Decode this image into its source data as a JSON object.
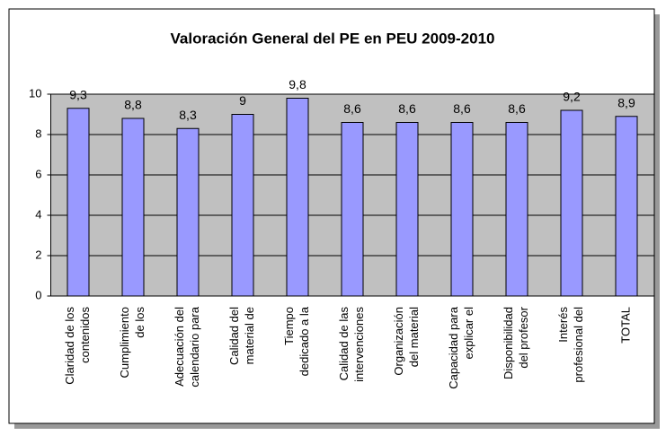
{
  "chart_data": {
    "type": "bar",
    "title": "Valoración General del PE en PEU 2009-2010",
    "categories": [
      [
        "Claridad de los",
        "contenidos"
      ],
      [
        "Cumplimiento",
        "de los"
      ],
      [
        "Adecuación del",
        "calendario para"
      ],
      [
        "Calidad del",
        "material de"
      ],
      [
        "Tiempo",
        "dedicado a la"
      ],
      [
        "Calidad de las",
        "intervenciones"
      ],
      [
        "Organización",
        "del material"
      ],
      [
        "Capacidad para",
        "explicar el"
      ],
      [
        "Disponibilidad",
        "del profesor"
      ],
      [
        "Interés",
        "profesional del"
      ],
      [
        "TOTAL"
      ]
    ],
    "values": [
      9.3,
      8.8,
      8.3,
      9,
      9.8,
      8.6,
      8.6,
      8.6,
      8.6,
      9.2,
      8.9
    ],
    "value_labels": [
      "9,3",
      "8,8",
      "8,3",
      "9",
      "9,8",
      "8,6",
      "8,6",
      "8,6",
      "8,6",
      "9,2",
      "8,9"
    ],
    "color": "#9999ff",
    "ylim": [
      0,
      10
    ],
    "yticks": [
      0,
      2,
      4,
      6,
      8,
      10
    ],
    "grid": true
  }
}
